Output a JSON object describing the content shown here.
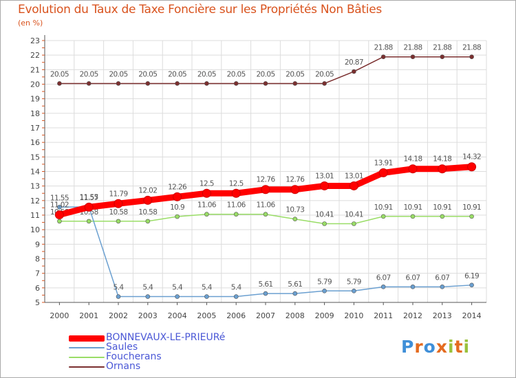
{
  "header": {
    "title": "Evolution du Taux de Taxe Foncière sur les Propriétés Non Bâties",
    "unit": "(en %)"
  },
  "legend": {
    "items": [
      {
        "label": "BONNEVAUX-LE-PRIEURé",
        "color": "#ff0000"
      },
      {
        "label": "Saules",
        "color": "#6a9fd0"
      },
      {
        "label": "Foucherans",
        "color": "#99dd66"
      },
      {
        "label": "Ornans",
        "color": "#7b2f2f"
      }
    ]
  },
  "logo": {
    "letters": [
      "P",
      "r",
      "o",
      "x",
      "i",
      "t",
      "i"
    ],
    "colors": [
      "#3f8fd8",
      "#e46b1f",
      "#3f8fd8",
      "#e46b1f",
      "#9ac13c",
      "#e46b1f",
      "#9ac13c"
    ]
  },
  "chart_data": {
    "type": "line",
    "x": [
      "2000",
      "2001",
      "2002",
      "2003",
      "2004",
      "2005",
      "2006",
      "2007",
      "2008",
      "2009",
      "2010",
      "2011",
      "2012",
      "2013",
      "2014"
    ],
    "ylim": [
      5,
      23
    ],
    "yticks": [
      5,
      6,
      7,
      8,
      9,
      10,
      11,
      12,
      13,
      14,
      15,
      16,
      17,
      18,
      19,
      20,
      21,
      22,
      23
    ],
    "grid": true,
    "series": [
      {
        "name": "Ornans",
        "color": "#7b2f2f",
        "labels": [
          "20.05",
          "20.05",
          "20.05",
          "20.05",
          "20.05",
          "20.05",
          "20.05",
          "20.05",
          "20.05",
          "20.05",
          "20.87",
          "21.88",
          "21.88",
          "21.88",
          "21.88"
        ],
        "values": [
          20.05,
          20.05,
          20.05,
          20.05,
          20.05,
          20.05,
          20.05,
          20.05,
          20.05,
          20.05,
          20.87,
          21.88,
          21.88,
          21.88,
          21.88
        ]
      },
      {
        "name": "Foucherans",
        "color": "#99dd66",
        "labels": [
          "10.58",
          "10.58",
          "10.58",
          "10.58",
          "10.9",
          "11.06",
          "11.06",
          "11.06",
          "10.73",
          "10.41",
          "10.41",
          "10.91",
          "10.91",
          "10.91",
          "10.91"
        ],
        "values": [
          10.58,
          10.58,
          10.58,
          10.58,
          10.9,
          11.06,
          11.06,
          11.06,
          10.73,
          10.41,
          10.41,
          10.91,
          10.91,
          10.91,
          10.91
        ]
      },
      {
        "name": "Saules",
        "color": "#6a9fd0",
        "labels": [
          "11.55",
          "11.57",
          "5.4",
          "5.4",
          "5.4",
          "5.4",
          "5.4",
          "5.61",
          "5.61",
          "5.79",
          "5.79",
          "6.07",
          "6.07",
          "6.07",
          "6.19"
        ],
        "values": [
          11.55,
          11.57,
          5.4,
          5.4,
          5.4,
          5.4,
          5.4,
          5.61,
          5.61,
          5.79,
          5.79,
          6.07,
          6.07,
          6.07,
          6.19
        ]
      },
      {
        "name": "BONNEVAUX-LE-PRIEURé",
        "color": "#ff0000",
        "labels": [
          "11.02",
          "11.55",
          "11.79",
          "12.02",
          "12.26",
          "12.5",
          "12.5",
          "12.76",
          "12.76",
          "13.01",
          "13.01",
          "13.91",
          "14.18",
          "14.18",
          "14.32"
        ],
        "values": [
          11.02,
          11.55,
          11.79,
          12.02,
          12.26,
          12.5,
          12.5,
          12.76,
          12.76,
          13.01,
          13.01,
          13.91,
          14.18,
          14.18,
          14.32
        ]
      }
    ]
  }
}
